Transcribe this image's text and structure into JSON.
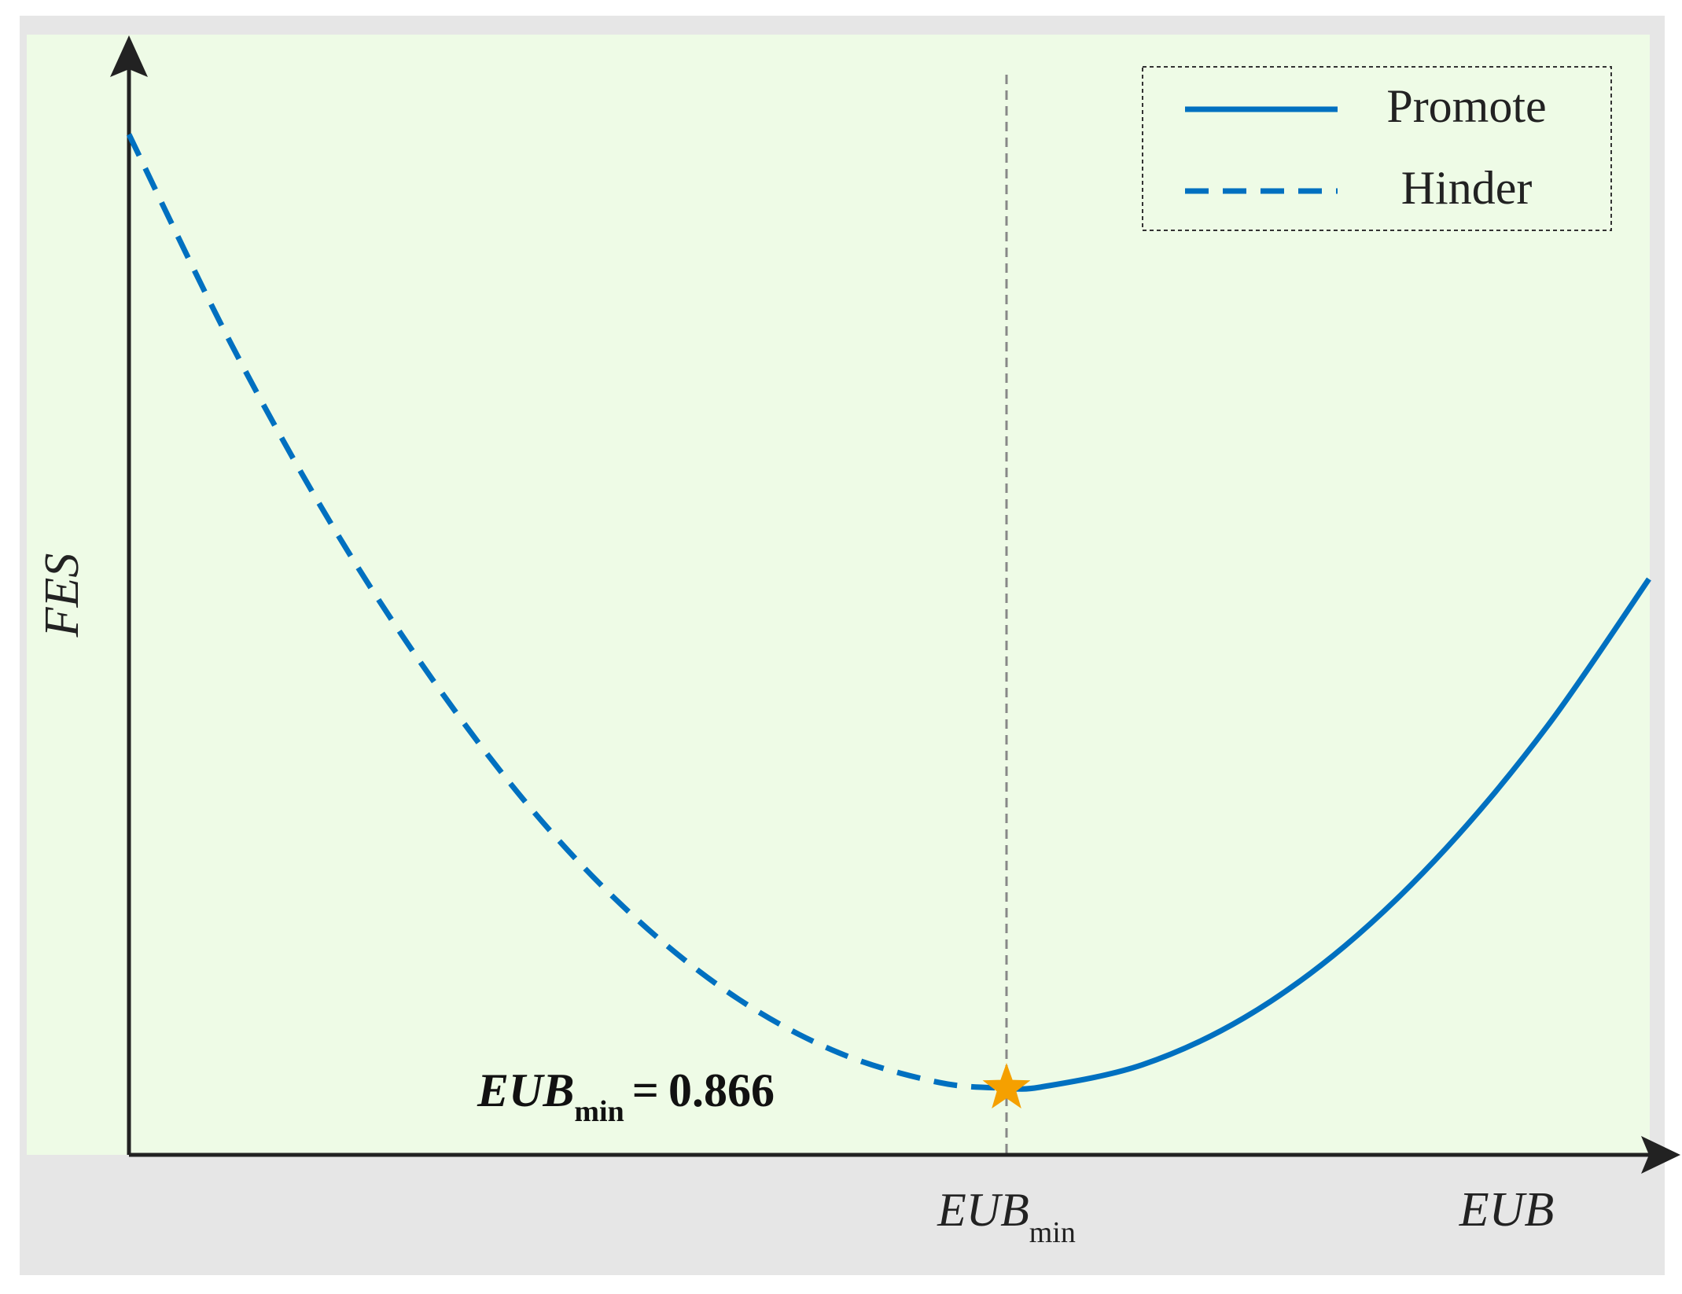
{
  "chart_data": {
    "type": "line",
    "xlabel": "EUB",
    "ylabel": "FES",
    "xlim": [
      0,
      1.5
    ],
    "ylim": [
      0,
      1
    ],
    "xticks": [
      {
        "value": 0.866,
        "label": "EUB",
        "sub": "min"
      }
    ],
    "series": [
      {
        "name": "Promote",
        "color": "#0070c0",
        "style": "solid",
        "x": [
          0.866,
          0.9,
          1.0,
          1.1,
          1.2,
          1.3,
          1.4,
          1.5
        ],
        "values": [
          0.06,
          0.061,
          0.081,
          0.123,
          0.188,
          0.276,
          0.386,
          0.518
        ]
      },
      {
        "name": "Hinder",
        "color": "#0070c0",
        "style": "dashed",
        "x": [
          0,
          0.1,
          0.2,
          0.3,
          0.4,
          0.5,
          0.6,
          0.7,
          0.8,
          0.866
        ],
        "values": [
          0.918,
          0.731,
          0.567,
          0.427,
          0.308,
          0.213,
          0.141,
          0.092,
          0.065,
          0.06
        ]
      }
    ],
    "annotation": {
      "x": 0.866,
      "y": 0.06,
      "label": "EUB",
      "sub": "min",
      "relation": "=",
      "value": 0.866,
      "color": "#f5a000"
    },
    "legend": "upper right"
  }
}
